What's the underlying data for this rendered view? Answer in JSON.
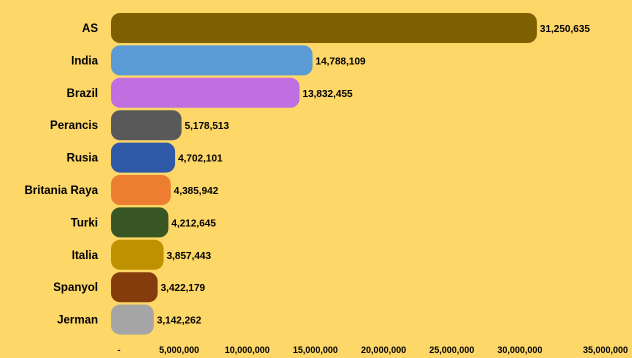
{
  "chart_data": {
    "type": "bar",
    "orientation": "horizontal",
    "categories": [
      "AS",
      "India",
      "Brazil",
      "Perancis",
      "Rusia",
      "Britania Raya",
      "Turki",
      "Italia",
      "Spanyol",
      "Jerman"
    ],
    "values": [
      31250635,
      14788109,
      13832455,
      5178513,
      4702101,
      4385942,
      4212645,
      3857443,
      3422179,
      3142262
    ],
    "value_labels": [
      "31,250,635",
      "14,788,109",
      "13,832,455",
      "5,178,513",
      "4,702,101",
      "4,385,942",
      "4,212,645",
      "3,857,443",
      "3,422,179",
      "3,142,262"
    ],
    "bar_colors": [
      "#7f6000",
      "#5b9bd5",
      "#c06fe0",
      "#595959",
      "#2e59a6",
      "#ed7d31",
      "#375623",
      "#bf9000",
      "#843c0c",
      "#a5a5a5"
    ],
    "xlim": [
      0,
      35000000
    ],
    "xticks": [
      0,
      5000000,
      10000000,
      15000000,
      20000000,
      25000000,
      30000000,
      35000000
    ],
    "xtick_labels": [
      "-",
      "5,000,000",
      "10,000,000",
      "15,000,000",
      "20,000,000",
      "25,000,000",
      "30,000,000",
      "35,000,000"
    ],
    "title": "",
    "xlabel": "",
    "ylabel": "",
    "grid": false,
    "legend": "none"
  }
}
